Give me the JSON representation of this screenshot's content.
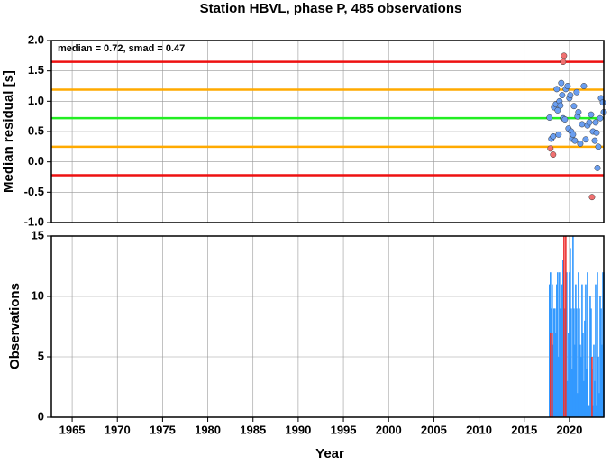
{
  "chart_data": [
    {
      "type": "scatter",
      "title": "Station HBVL, phase P, 485 observations",
      "y_label": "Median residual [s]",
      "annotation": "median = 0.72, smad = 0.47",
      "xlim": [
        1962.7,
        2023.8
      ],
      "ylim": [
        -1,
        2
      ],
      "yticks": [
        {
          "value": 2,
          "label": "2.0"
        },
        1.5,
        {
          "value": 1,
          "label": "1.0"
        },
        0.5,
        {
          "value": 0,
          "label": "0.0"
        },
        -0.5,
        {
          "value": -1,
          "label": "-1.0"
        }
      ],
      "grid": true,
      "hlines": [
        {
          "value": 1.65,
          "color": "#ee1111"
        },
        {
          "value": 1.19,
          "color": "#ffaa00"
        },
        {
          "value": 0.72,
          "color": "#22ee22"
        },
        {
          "value": 0.25,
          "color": "#ffaa00"
        },
        {
          "value": -0.22,
          "color": "#ee1111"
        }
      ],
      "series": [
        {
          "color": "#6a9ef0",
          "x": [
            2017.8,
            2018.0,
            2018.2,
            2018.3,
            2018.5,
            2018.6,
            2018.7,
            2018.8,
            2018.9,
            2019.0,
            2019.1,
            2019.2,
            2019.3,
            2019.5,
            2019.6,
            2019.8,
            2019.9,
            2020.0,
            2020.1,
            2020.2,
            2020.3,
            2020.4,
            2020.5,
            2020.6,
            2020.8,
            2020.9,
            2021.0,
            2021.2,
            2021.4,
            2021.6,
            2021.8,
            2022.0,
            2022.2,
            2022.4,
            2022.6,
            2022.8,
            2022.9,
            2023.0,
            2023.1,
            2023.2,
            2023.4,
            2023.5,
            2023.7,
            2023.8
          ],
          "values": [
            0.73,
            0.38,
            0.42,
            0.9,
            0.95,
            1.2,
            0.85,
            0.45,
            1.0,
            0.93,
            1.3,
            1.1,
            0.72,
            0.7,
            1.2,
            1.25,
            0.55,
            1.05,
            1.1,
            0.5,
            0.38,
            0.45,
            0.92,
            0.35,
            1.15,
            0.75,
            0.82,
            0.3,
            0.62,
            1.25,
            0.37,
            0.6,
            0.65,
            0.78,
            0.5,
            0.35,
            0.65,
            0.48,
            -0.1,
            0.25,
            0.72,
            1.05,
            0.98,
            0.82
          ]
        },
        {
          "color": "#f07070",
          "x": [
            2019.4,
            2019.3,
            2017.9,
            2018.2,
            2022.5
          ],
          "values": [
            1.75,
            1.65,
            0.22,
            0.12,
            -0.58
          ]
        }
      ]
    },
    {
      "type": "bar",
      "x_label": "Year",
      "y_label": "Observations",
      "xlim": [
        1962.7,
        2023.8
      ],
      "ylim": [
        0,
        15
      ],
      "xticks": [
        1965,
        1970,
        1975,
        1980,
        1985,
        1990,
        1995,
        2000,
        2005,
        2010,
        2015,
        2020
      ],
      "yticks": [
        0,
        5,
        10,
        15
      ],
      "grid": true,
      "series": [
        {
          "color": "#3399ff",
          "x": [
            2017.8,
            2017.9,
            2018.0,
            2018.1,
            2018.2,
            2018.3,
            2018.4,
            2018.5,
            2018.6,
            2018.7,
            2018.8,
            2018.9,
            2019.0,
            2019.1,
            2019.2,
            2019.3,
            2019.4,
            2019.5,
            2019.6,
            2019.7,
            2019.8,
            2019.9,
            2020.0,
            2020.1,
            2020.2,
            2020.3,
            2020.4,
            2020.5,
            2020.6,
            2020.7,
            2020.8,
            2020.9,
            2021.0,
            2021.1,
            2021.2,
            2021.3,
            2021.4,
            2021.5,
            2021.6,
            2021.7,
            2021.8,
            2021.9,
            2022.0,
            2022.1,
            2022.2,
            2022.3,
            2022.4,
            2022.5,
            2022.6,
            2022.7,
            2022.8,
            2022.9,
            2023.0,
            2023.1,
            2023.2,
            2023.3,
            2023.4,
            2023.5,
            2023.6,
            2023.7,
            2023.8
          ],
          "values": [
            11,
            12,
            9,
            11,
            6,
            9,
            9,
            7,
            11,
            12,
            5,
            12,
            9,
            9,
            11,
            13,
            6,
            9,
            5,
            12,
            3,
            7,
            12,
            14,
            9,
            4,
            15,
            9,
            6,
            11,
            9,
            2,
            12,
            9,
            6,
            5,
            11,
            7,
            3,
            8,
            11,
            4,
            12,
            1,
            1,
            10,
            9,
            4,
            1,
            6,
            3,
            11,
            1,
            12,
            5,
            2,
            10,
            9,
            6,
            12,
            12
          ]
        },
        {
          "color": "#ee3333",
          "x": [
            2017.9,
            2018.1,
            2019.4,
            2019.6,
            2022.5
          ],
          "values": [
            7,
            7,
            15,
            15,
            5
          ]
        }
      ]
    }
  ]
}
